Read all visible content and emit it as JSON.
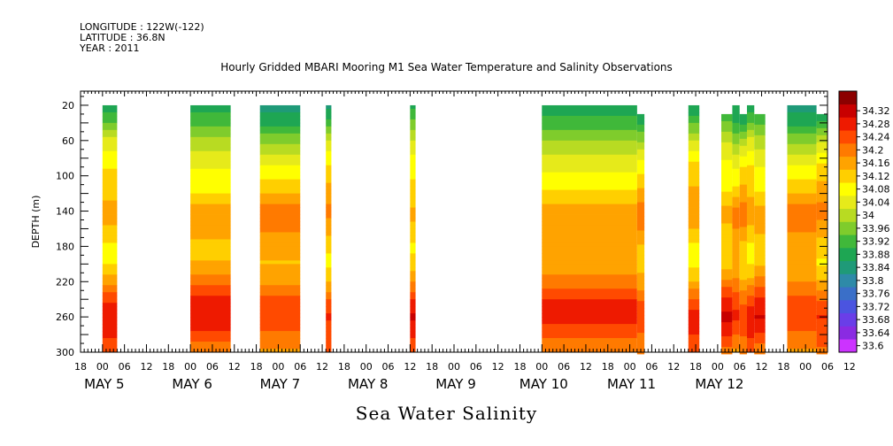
{
  "header": {
    "longitude": "LONGITUDE : 122W(-122)",
    "latitude": "LATITUDE : 36.8N",
    "year": "YEAR : 2011"
  },
  "chart_data": {
    "type": "heatmap",
    "title": "Hourly Gridded MBARI Mooring M1 Sea Water Temperature and Salinity Observations",
    "xlabel": "Sea Water Salinity",
    "ylabel": "DEPTH (m)",
    "x_unit": "hours since MAY 4 2011 18:00",
    "xlim": [
      0,
      204
    ],
    "ylim": [
      300,
      4
    ],
    "y_ticks": [
      20,
      60,
      100,
      140,
      180,
      220,
      260,
      300
    ],
    "x_hour_ticks": [
      "18",
      "00",
      "06",
      "12",
      "18",
      "00",
      "06",
      "12",
      "18",
      "00",
      "06",
      "12",
      "18",
      "00",
      "06",
      "12",
      "18",
      "00",
      "06",
      "12",
      "18",
      "00",
      "06",
      "12",
      "18",
      "00",
      "06",
      "12",
      "18",
      "00",
      "06",
      "12",
      "18",
      "00",
      "06",
      "12"
    ],
    "x_day_labels": [
      {
        "label": "MAY  5",
        "x": 6
      },
      {
        "label": "MAY  6",
        "x": 30
      },
      {
        "label": "MAY  7",
        "x": 54
      },
      {
        "label": "MAY  8",
        "x": 78
      },
      {
        "label": "MAY  9",
        "x": 102
      },
      {
        "label": "MAY 10",
        "x": 126
      },
      {
        "label": "MAY 11",
        "x": 150
      },
      {
        "label": "MAY 12",
        "x": 174
      }
    ],
    "colorbar": {
      "levels": [
        33.6,
        33.64,
        33.68,
        33.72,
        33.76,
        33.8,
        33.84,
        33.88,
        33.92,
        33.96,
        34,
        34.04,
        34.08,
        34.12,
        34.16,
        34.2,
        34.24,
        34.28,
        34.32
      ],
      "colors": [
        "#cc33ff",
        "#8a2be2",
        "#6a3ee8",
        "#4b54e0",
        "#3a6fc8",
        "#2e8aa8",
        "#1f9a78",
        "#1ea653",
        "#40b83a",
        "#7fcc2c",
        "#b8db22",
        "#e6ea1a",
        "#ffff00",
        "#ffcf00",
        "#ffa300",
        "#ff7a00",
        "#ff4a00",
        "#ee1a00",
        "#c80000",
        "#8c0000"
      ]
    },
    "segments": [
      {
        "x0": 6,
        "x1": 10,
        "top": 20
      },
      {
        "x0": 30,
        "x1": 41,
        "top": 20
      },
      {
        "x0": 49,
        "x1": 60,
        "top": 20
      },
      {
        "x0": 67,
        "x1": 68.5,
        "top": 20
      },
      {
        "x0": 90,
        "x1": 91.5,
        "top": 20
      },
      {
        "x0": 126,
        "x1": 152,
        "top": 20
      },
      {
        "x0": 152,
        "x1": 154,
        "top": 30
      },
      {
        "x0": 166,
        "x1": 169,
        "top": 20
      },
      {
        "x0": 175,
        "x1": 178,
        "top": 30
      },
      {
        "x0": 178,
        "x1": 180,
        "top": 20
      },
      {
        "x0": 180,
        "x1": 182,
        "top": 30
      },
      {
        "x0": 182,
        "x1": 184,
        "top": 20
      },
      {
        "x0": 184,
        "x1": 187,
        "top": 30
      },
      {
        "x0": 193,
        "x1": 201,
        "top": 20
      },
      {
        "x0": 201,
        "x1": 204,
        "top": 30
      }
    ],
    "depth_profile": [
      {
        "depth": 20,
        "value": 33.84
      },
      {
        "depth": 40,
        "value": 33.9
      },
      {
        "depth": 60,
        "value": 33.98
      },
      {
        "depth": 80,
        "value": 34.04
      },
      {
        "depth": 100,
        "value": 34.08
      },
      {
        "depth": 120,
        "value": 34.11
      },
      {
        "depth": 140,
        "value": 34.16
      },
      {
        "depth": 160,
        "value": 34.14
      },
      {
        "depth": 180,
        "value": 34.1
      },
      {
        "depth": 200,
        "value": 34.1
      },
      {
        "depth": 220,
        "value": 34.15
      },
      {
        "depth": 240,
        "value": 34.22
      },
      {
        "depth": 260,
        "value": 34.26
      },
      {
        "depth": 280,
        "value": 34.22
      },
      {
        "depth": 300,
        "value": 34.18
      }
    ]
  }
}
